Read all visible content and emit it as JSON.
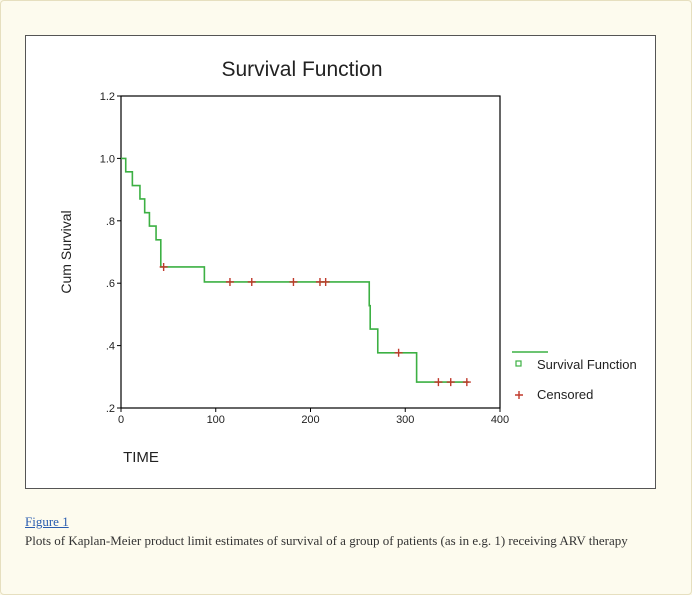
{
  "chart_data": {
    "type": "line",
    "title": "Survival Function",
    "xlabel": "TIME",
    "ylabel": "Cum Survival",
    "xlim": [
      0,
      400
    ],
    "ylim": [
      0.2,
      1.2
    ],
    "x_ticks": [
      0,
      100,
      200,
      300,
      400
    ],
    "x_tick_labels": [
      "0",
      "100",
      "200",
      "300",
      "400"
    ],
    "y_ticks": [
      0.2,
      0.4,
      0.6,
      0.8,
      1.0,
      1.2
    ],
    "y_tick_labels": [
      ".2",
      ".4",
      ".6",
      ".8",
      "1.0",
      "1.2"
    ],
    "grid": false,
    "legend_position": "right",
    "series": [
      {
        "name": "Survival Function",
        "kind": "step",
        "color": "#3cb043",
        "x": [
          0,
          5,
          12,
          20,
          25,
          30,
          37,
          42,
          88,
          262,
          263,
          271,
          312,
          367
        ],
        "y": [
          1.0,
          0.957,
          0.913,
          0.87,
          0.826,
          0.783,
          0.739,
          0.652,
          0.604,
          0.528,
          0.453,
          0.377,
          0.283,
          0.283
        ]
      },
      {
        "name": "Censored",
        "kind": "marker",
        "marker": "plus",
        "color": "#c0392b",
        "x": [
          45,
          115,
          138,
          182,
          210,
          216,
          293,
          335,
          348,
          365
        ],
        "y": [
          0.652,
          0.604,
          0.604,
          0.604,
          0.604,
          0.604,
          0.377,
          0.283,
          0.283,
          0.283
        ]
      }
    ]
  },
  "caption": {
    "figure_link": "Figure 1",
    "text": "Plots of Kaplan-Meier product limit estimates of survival of a group of patients (as in e.g. 1) receiving ARV therapy"
  }
}
